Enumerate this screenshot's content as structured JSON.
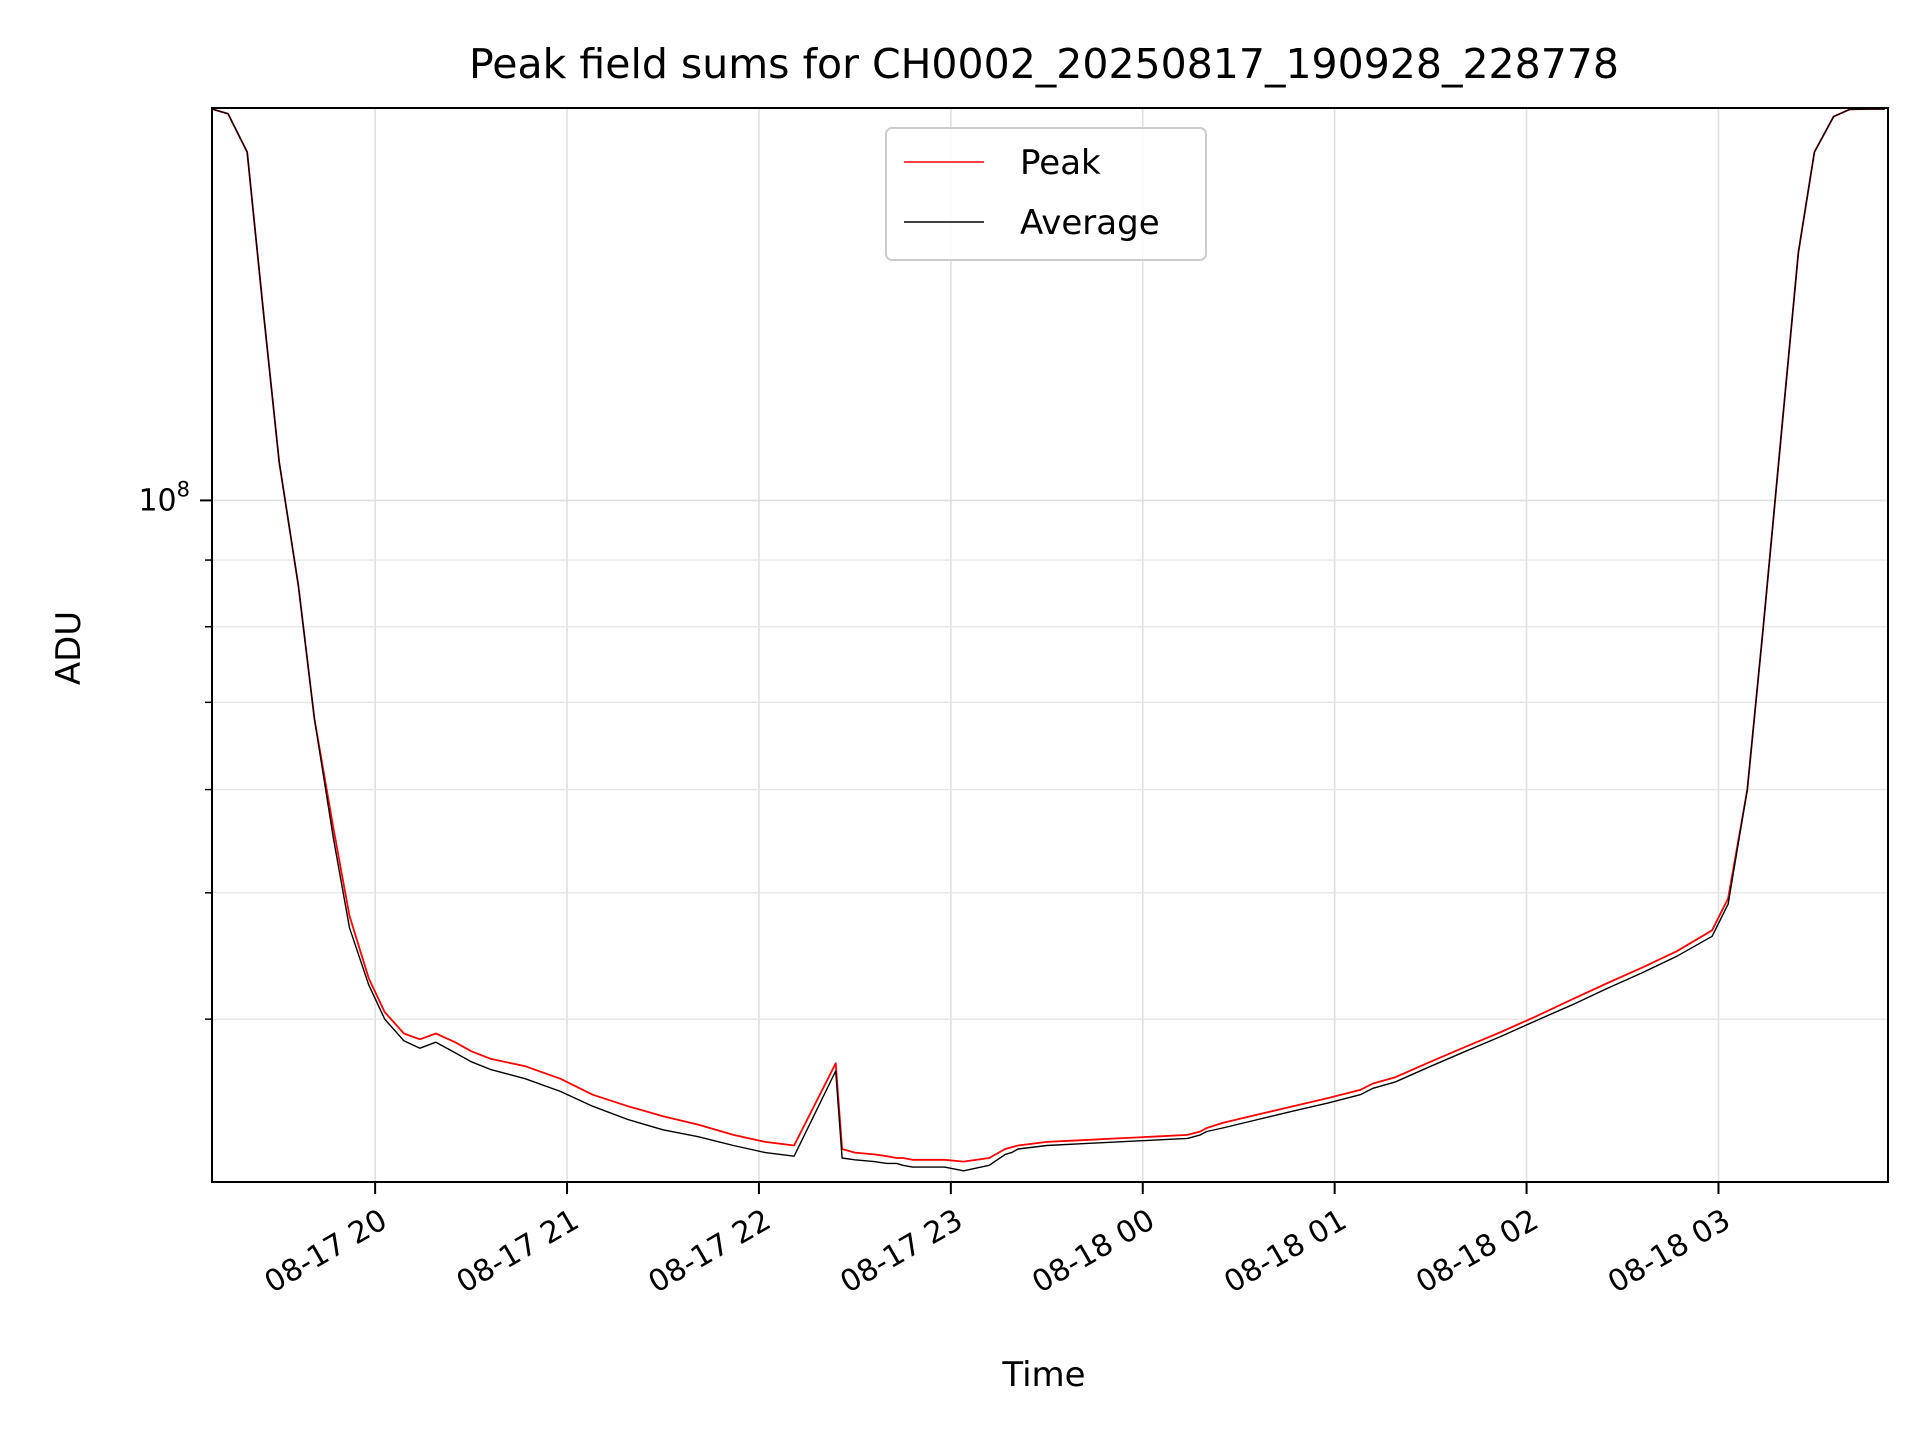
{
  "chart_data": {
    "type": "line",
    "title": "Peak field sums for CH0002_20250817_190928_228778",
    "xlabel": "Time",
    "ylabel": "ADU",
    "yscale": "log",
    "ylim": [
      30000000,
      200000000
    ],
    "xlim": [
      "2025-08-17 19:09",
      "2025-08-18 03:53"
    ],
    "x_ticks": [
      {
        "value": "2025-08-17 20:00",
        "label": "08-17 20"
      },
      {
        "value": "2025-08-17 21:00",
        "label": "08-17 21"
      },
      {
        "value": "2025-08-17 22:00",
        "label": "08-17 22"
      },
      {
        "value": "2025-08-17 23:00",
        "label": "08-17 23"
      },
      {
        "value": "2025-08-18 00:00",
        "label": "08-18 00"
      },
      {
        "value": "2025-08-18 01:00",
        "label": "08-18 01"
      },
      {
        "value": "2025-08-18 02:00",
        "label": "08-18 02"
      },
      {
        "value": "2025-08-18 03:00",
        "label": "08-18 03"
      }
    ],
    "y_ticks": [
      {
        "value": 100000000,
        "label": "10",
        "exponent": "8"
      }
    ],
    "grid": true,
    "legend": {
      "position": "top-center"
    },
    "series": [
      {
        "name": "Peak",
        "color": "#ff0000",
        "x": [
          "2025-08-17 19:09",
          "2025-08-17 19:14",
          "2025-08-17 19:20",
          "2025-08-17 19:25",
          "2025-08-17 19:30",
          "2025-08-17 19:36",
          "2025-08-17 19:41",
          "2025-08-17 19:47",
          "2025-08-17 19:52",
          "2025-08-17 19:58",
          "2025-08-17 20:03",
          "2025-08-17 20:09",
          "2025-08-17 20:14",
          "2025-08-17 20:19",
          "2025-08-17 20:25",
          "2025-08-17 20:30",
          "2025-08-17 20:36",
          "2025-08-17 20:47",
          "2025-08-17 20:58",
          "2025-08-17 21:08",
          "2025-08-17 21:19",
          "2025-08-17 21:30",
          "2025-08-17 21:41",
          "2025-08-17 21:52",
          "2025-08-17 22:02",
          "2025-08-17 22:11",
          "2025-08-17 22:24",
          "2025-08-17 22:26",
          "2025-08-17 22:30",
          "2025-08-17 22:36",
          "2025-08-17 22:40",
          "2025-08-17 22:43",
          "2025-08-17 22:45",
          "2025-08-17 22:48",
          "2025-08-17 22:58",
          "2025-08-17 23:04",
          "2025-08-17 23:12",
          "2025-08-17 23:17",
          "2025-08-17 23:19",
          "2025-08-17 23:21",
          "2025-08-17 23:30",
          "2025-08-17 23:41",
          "2025-08-17 23:52",
          "2025-08-18 00:03",
          "2025-08-18 00:14",
          "2025-08-18 00:18",
          "2025-08-18 00:20",
          "2025-08-18 00:25",
          "2025-08-18 00:36",
          "2025-08-18 00:47",
          "2025-08-18 00:58",
          "2025-08-18 01:08",
          "2025-08-18 01:10",
          "2025-08-18 01:12",
          "2025-08-18 01:19",
          "2025-08-18 01:30",
          "2025-08-18 01:41",
          "2025-08-18 01:52",
          "2025-08-18 02:03",
          "2025-08-18 02:14",
          "2025-08-18 02:25",
          "2025-08-18 02:36",
          "2025-08-18 02:47",
          "2025-08-18 02:58",
          "2025-08-18 03:03",
          "2025-08-18 03:09",
          "2025-08-18 03:14",
          "2025-08-18 03:20",
          "2025-08-18 03:25",
          "2025-08-18 03:30",
          "2025-08-18 03:36",
          "2025-08-18 03:41",
          "2025-08-18 03:47",
          "2025-08-18 03:52"
        ],
        "y": [
          200000000,
          198000000,
          185000000,
          140000000,
          107000000,
          86000000,
          68000000,
          56000000,
          48000000,
          43000000,
          40500000,
          39000000,
          38600000,
          39000000,
          38400000,
          37800000,
          37300000,
          36800000,
          36000000,
          35000000,
          34300000,
          33700000,
          33200000,
          32600000,
          32200000,
          32000000,
          37000000,
          31800000,
          31600000,
          31500000,
          31400000,
          31300000,
          31300000,
          31200000,
          31200000,
          31100000,
          31300000,
          31800000,
          31900000,
          32000000,
          32200000,
          32300000,
          32400000,
          32500000,
          32600000,
          32800000,
          33000000,
          33300000,
          33800000,
          34300000,
          34800000,
          35300000,
          35500000,
          35700000,
          36100000,
          37100000,
          38100000,
          39100000,
          40200000,
          41400000,
          42600000,
          43800000,
          45100000,
          46800000,
          49500000,
          60000000,
          80000000,
          115000000,
          155000000,
          185000000,
          197000000,
          199500000,
          200000000,
          200000000
        ]
      },
      {
        "name": "Average",
        "color": "#000000",
        "x": [
          "2025-08-17 19:09",
          "2025-08-17 19:14",
          "2025-08-17 19:20",
          "2025-08-17 19:25",
          "2025-08-17 19:30",
          "2025-08-17 19:36",
          "2025-08-17 19:41",
          "2025-08-17 19:47",
          "2025-08-17 19:52",
          "2025-08-17 19:58",
          "2025-08-17 20:03",
          "2025-08-17 20:09",
          "2025-08-17 20:14",
          "2025-08-17 20:19",
          "2025-08-17 20:25",
          "2025-08-17 20:30",
          "2025-08-17 20:36",
          "2025-08-17 20:47",
          "2025-08-17 20:58",
          "2025-08-17 21:08",
          "2025-08-17 21:19",
          "2025-08-17 21:30",
          "2025-08-17 21:41",
          "2025-08-17 21:52",
          "2025-08-17 22:02",
          "2025-08-17 22:11",
          "2025-08-17 22:24",
          "2025-08-17 22:26",
          "2025-08-17 22:30",
          "2025-08-17 22:36",
          "2025-08-17 22:40",
          "2025-08-17 22:43",
          "2025-08-17 22:45",
          "2025-08-17 22:48",
          "2025-08-17 22:58",
          "2025-08-17 23:04",
          "2025-08-17 23:12",
          "2025-08-17 23:17",
          "2025-08-17 23:19",
          "2025-08-17 23:21",
          "2025-08-17 23:30",
          "2025-08-17 23:41",
          "2025-08-17 23:52",
          "2025-08-18 00:03",
          "2025-08-18 00:14",
          "2025-08-18 00:18",
          "2025-08-18 00:20",
          "2025-08-18 00:25",
          "2025-08-18 00:36",
          "2025-08-18 00:47",
          "2025-08-18 00:58",
          "2025-08-18 01:08",
          "2025-08-18 01:10",
          "2025-08-18 01:12",
          "2025-08-18 01:19",
          "2025-08-18 01:30",
          "2025-08-18 01:41",
          "2025-08-18 01:52",
          "2025-08-18 02:03",
          "2025-08-18 02:14",
          "2025-08-18 02:25",
          "2025-08-18 02:36",
          "2025-08-18 02:47",
          "2025-08-18 02:58",
          "2025-08-18 03:03",
          "2025-08-18 03:09",
          "2025-08-18 03:14",
          "2025-08-18 03:20",
          "2025-08-18 03:25",
          "2025-08-18 03:30",
          "2025-08-18 03:36",
          "2025-08-18 03:41",
          "2025-08-18 03:47",
          "2025-08-18 03:52"
        ],
        "y": [
          200000000,
          198000000,
          185000000,
          140000000,
          107000000,
          86000000,
          68000000,
          55000000,
          47000000,
          42500000,
          40000000,
          38500000,
          38000000,
          38400000,
          37700000,
          37100000,
          36600000,
          36000000,
          35200000,
          34300000,
          33500000,
          32900000,
          32500000,
          32000000,
          31600000,
          31400000,
          36500000,
          31300000,
          31200000,
          31100000,
          31000000,
          31000000,
          30900000,
          30800000,
          30800000,
          30600000,
          30900000,
          31500000,
          31600000,
          31800000,
          32000000,
          32100000,
          32200000,
          32300000,
          32400000,
          32600000,
          32800000,
          33000000,
          33500000,
          34000000,
          34500000,
          35000000,
          35200000,
          35400000,
          35800000,
          36800000,
          37800000,
          38800000,
          39900000,
          41000000,
          42200000,
          43400000,
          44700000,
          46300000,
          49000000,
          60000000,
          80000000,
          115000000,
          155000000,
          185000000,
          197000000,
          199500000,
          200000000,
          200000000
        ]
      }
    ]
  }
}
